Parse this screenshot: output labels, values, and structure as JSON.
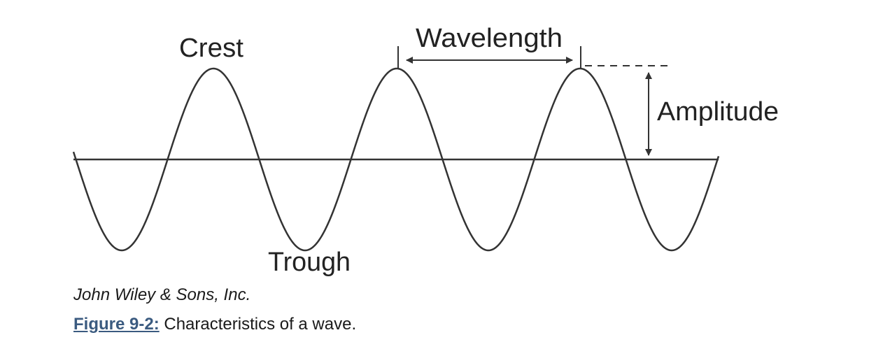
{
  "figure": {
    "labels": {
      "crest": "Crest",
      "trough": "Trough",
      "wavelength": "Wavelength",
      "amplitude": "Amplitude"
    }
  },
  "credit": "John Wiley & Sons, Inc.",
  "caption": {
    "figure_label": "Figure 9-2:",
    "text": "Characteristics of a wave."
  }
}
